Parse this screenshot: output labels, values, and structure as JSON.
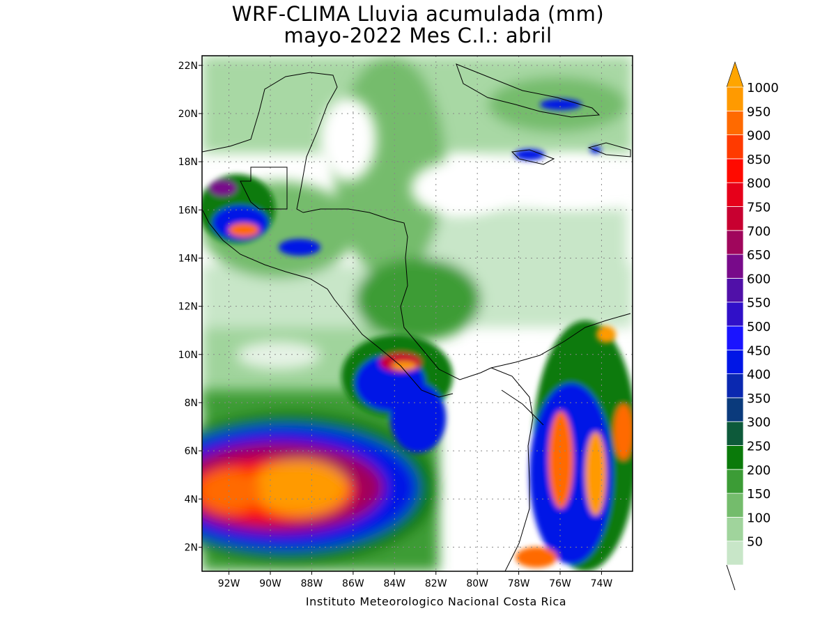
{
  "title_line1": "WRF-CLIMA Lluvia acumulada (mm)",
  "title_line2": "mayo-2022 Mes C.I.: abril",
  "credit": "Instituto Meteorologico Nacional Costa Rica",
  "lat_ticks": [
    {
      "value": 2,
      "label": "2N"
    },
    {
      "value": 4,
      "label": "4N"
    },
    {
      "value": 6,
      "label": "6N"
    },
    {
      "value": 8,
      "label": "8N"
    },
    {
      "value": 10,
      "label": "10N"
    },
    {
      "value": 12,
      "label": "12N"
    },
    {
      "value": 14,
      "label": "14N"
    },
    {
      "value": 16,
      "label": "16N"
    },
    {
      "value": 18,
      "label": "18N"
    },
    {
      "value": 20,
      "label": "20N"
    },
    {
      "value": 22,
      "label": "22N"
    }
  ],
  "lon_ticks": [
    {
      "value": -92,
      "label": "92W"
    },
    {
      "value": -90,
      "label": "90W"
    },
    {
      "value": -88,
      "label": "88W"
    },
    {
      "value": -86,
      "label": "86W"
    },
    {
      "value": -84,
      "label": "84W"
    },
    {
      "value": -82,
      "label": "82W"
    },
    {
      "value": -80,
      "label": "80W"
    },
    {
      "value": -78,
      "label": "78W"
    },
    {
      "value": -76,
      "label": "76W"
    },
    {
      "value": -74,
      "label": "74W"
    }
  ],
  "colorbar": {
    "levels": [
      {
        "label": "50",
        "color": "#c8e6c8"
      },
      {
        "label": "100",
        "color": "#a0d49c"
      },
      {
        "label": "150",
        "color": "#74bc6c"
      },
      {
        "label": "200",
        "color": "#3c9c36"
      },
      {
        "label": "250",
        "color": "#0a7a0a"
      },
      {
        "label": "300",
        "color": "#0d5a3a"
      },
      {
        "label": "350",
        "color": "#0a3a7c"
      },
      {
        "label": "400",
        "color": "#0a28b0"
      },
      {
        "label": "450",
        "color": "#0016e6"
      },
      {
        "label": "500",
        "color": "#1a14ff"
      },
      {
        "label": "550",
        "color": "#3010c8"
      },
      {
        "label": "600",
        "color": "#5010a8"
      },
      {
        "label": "650",
        "color": "#780a8a"
      },
      {
        "label": "700",
        "color": "#a0065c"
      },
      {
        "label": "750",
        "color": "#c80030"
      },
      {
        "label": "800",
        "color": "#e6001a"
      },
      {
        "label": "850",
        "color": "#ff0a00"
      },
      {
        "label": "900",
        "color": "#ff3a00"
      },
      {
        "label": "950",
        "color": "#ff6a00"
      },
      {
        "label": "1000",
        "color": "#ff9a00"
      }
    ],
    "over_color": "#ffa500"
  },
  "map": {
    "lon_range": [
      -93.3,
      -72.5
    ],
    "lat_range": [
      1,
      22.4
    ]
  }
}
